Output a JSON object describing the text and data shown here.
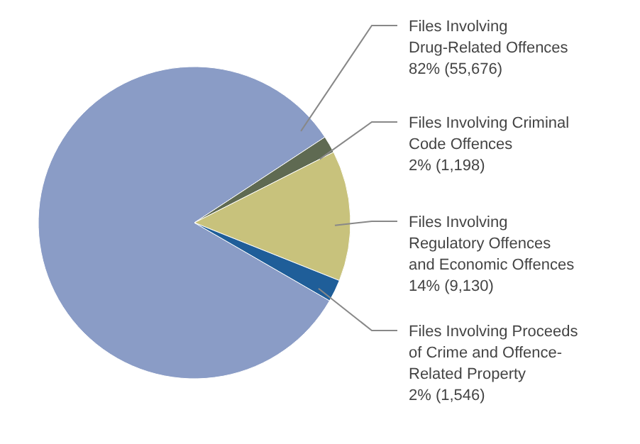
{
  "chart_data": {
    "type": "pie",
    "categories": [
      "Files Involving\nDrug-Related Offences",
      "Files Involving Criminal\nCode Offences",
      "Files Involving\nRegulatory Offences\nand Economic Offences",
      "Files Involving Proceeds\nof Crime and Offence-\nRelated Property"
    ],
    "values": [
      55676,
      1198,
      9130,
      1546
    ],
    "value_labels": [
      "82% (55,676)",
      "2% (1,198)",
      "14% (9,130)",
      "2% (1,546)"
    ],
    "colors": [
      "#8a9cc6",
      "#5f6a52",
      "#c8c27c",
      "#1f5e99"
    ]
  }
}
